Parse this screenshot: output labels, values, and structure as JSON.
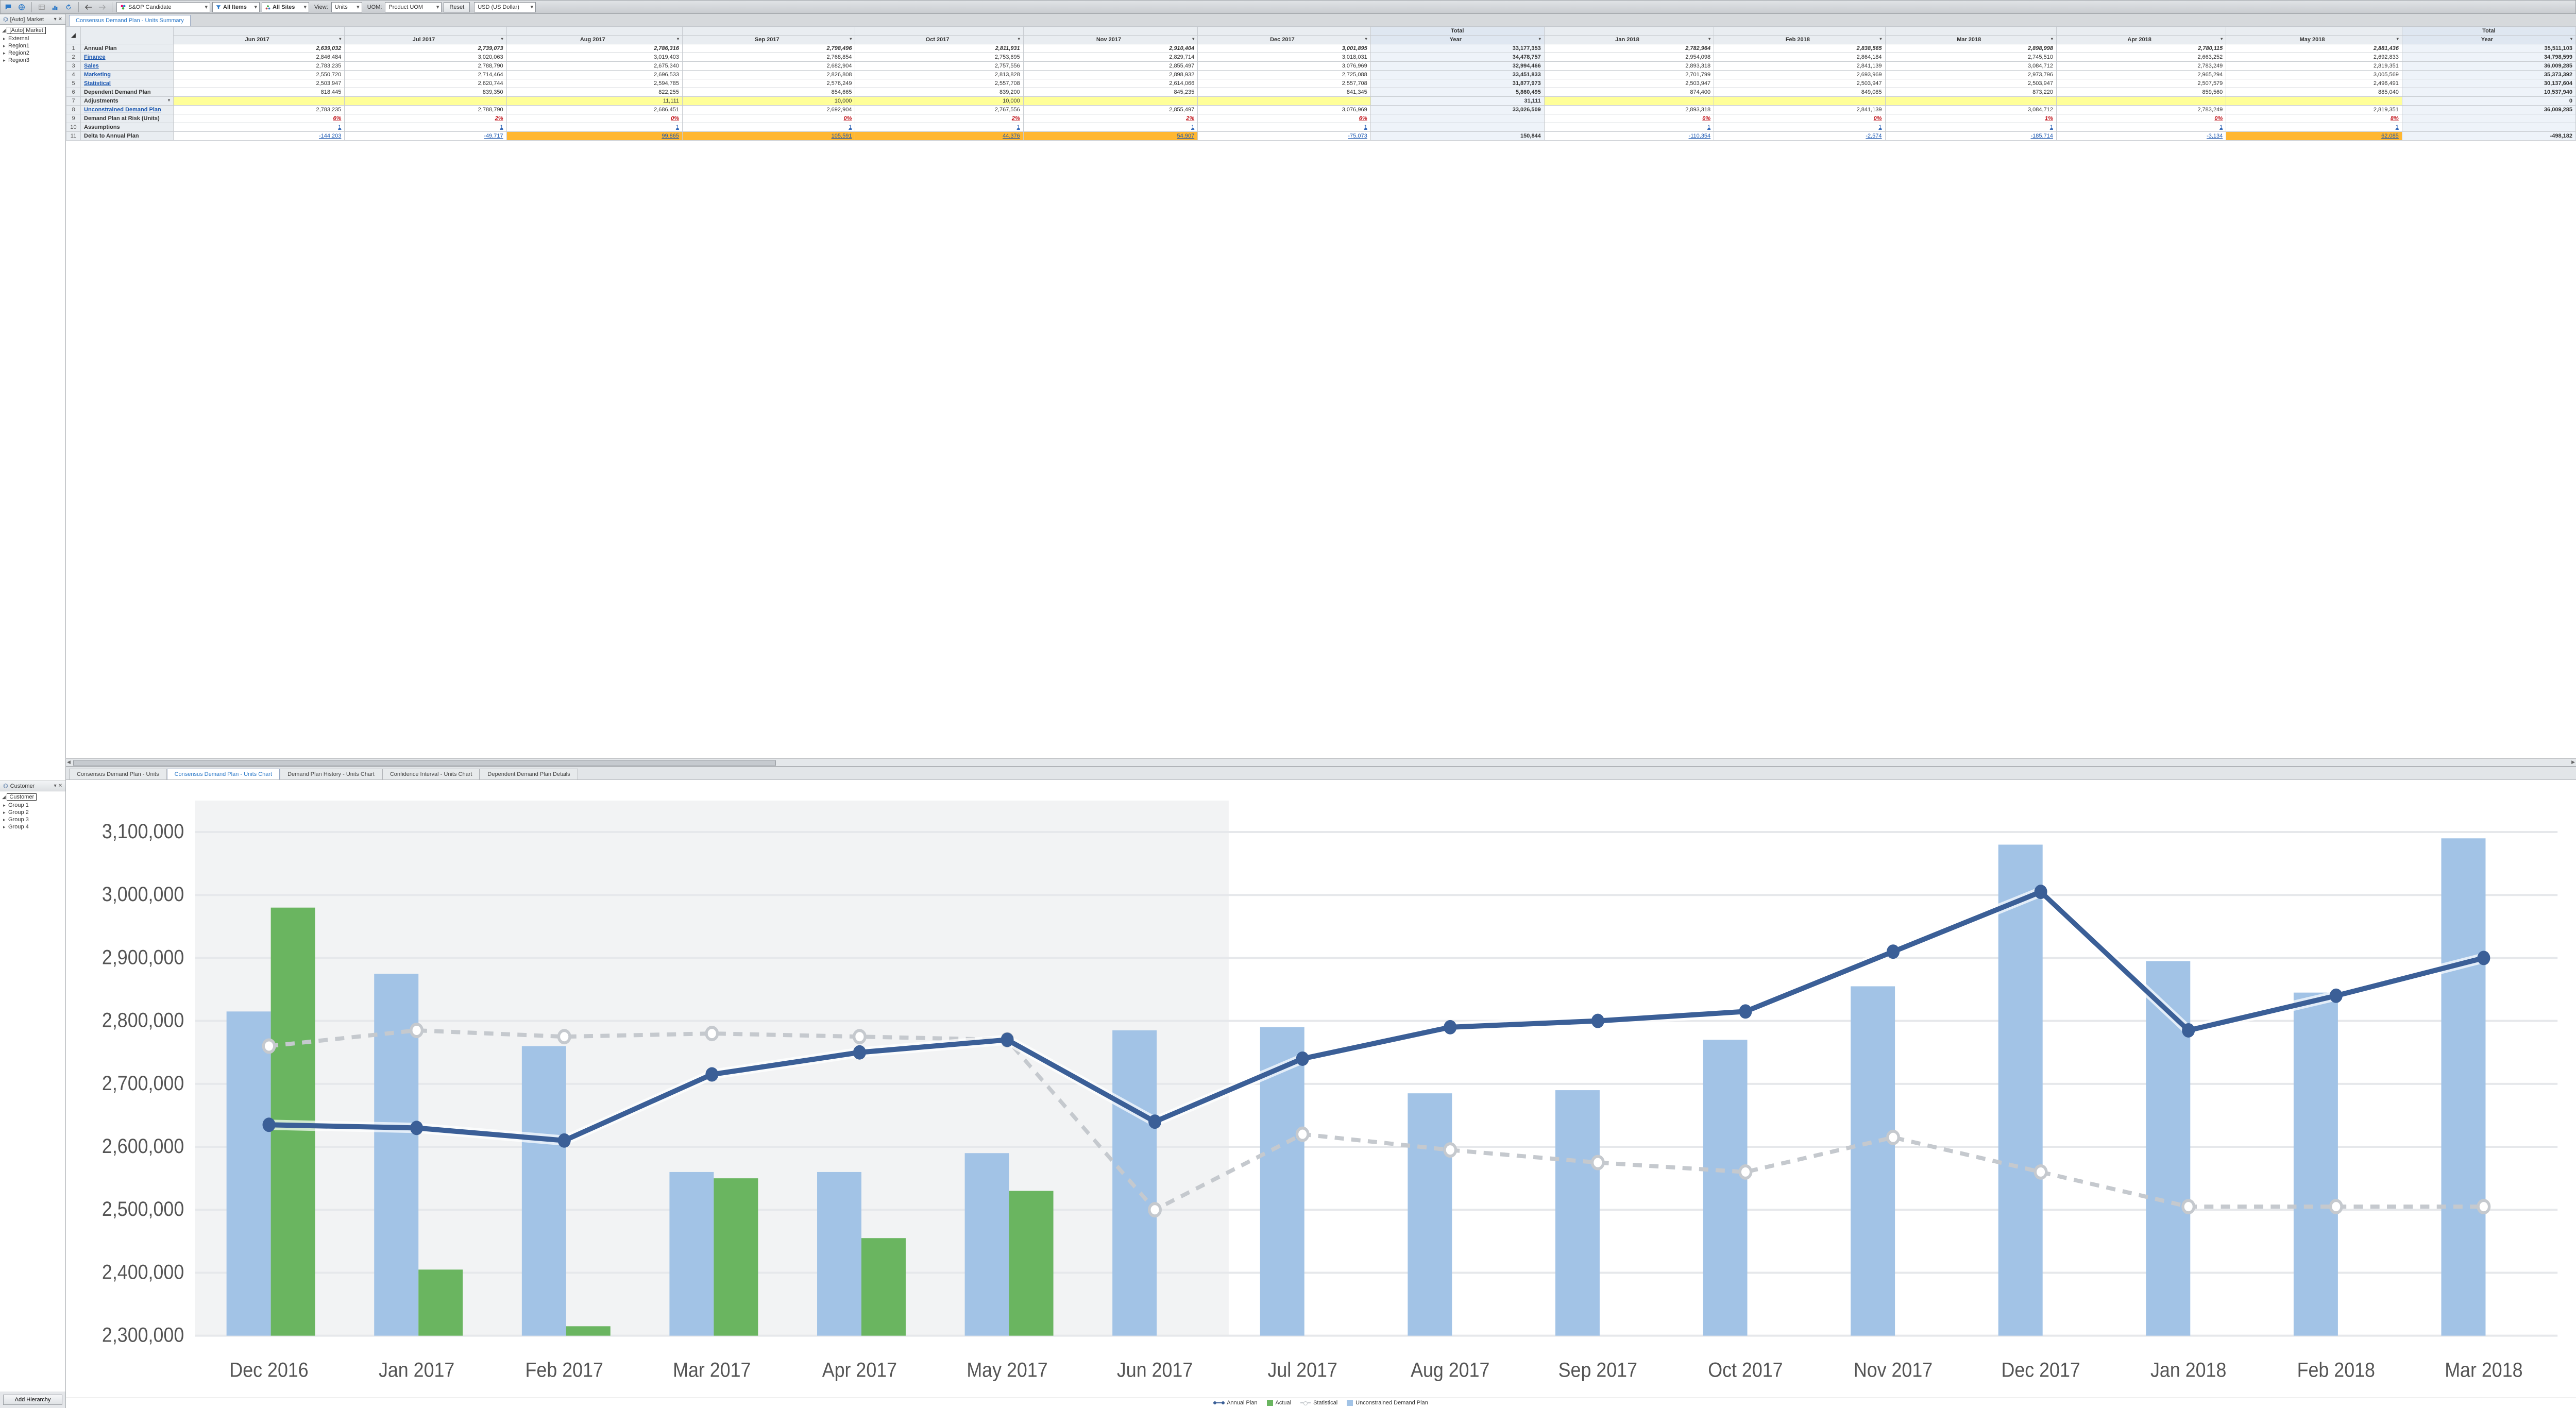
{
  "toolbar": {
    "scenario": "S&OP Candidate",
    "filter1": "All Items",
    "filter2": "All Sites",
    "view_lbl": "View:",
    "view_val": "Units",
    "uom_lbl": "UOM:",
    "uom_val": "Product UOM",
    "reset": "Reset",
    "currency": "USD (US Dollar)"
  },
  "left_top": {
    "hdr": "[Auto] Market",
    "root": "[Auto] Market",
    "nodes": [
      "External",
      "Region1",
      "Region2",
      "Region3"
    ]
  },
  "left_bottom": {
    "hdr": "Customer",
    "root": "Customer",
    "nodes": [
      "Group 1",
      "Group 2",
      "Group 3",
      "Group 4"
    ],
    "add": "Add Hierarchy"
  },
  "tabs_top": {
    "active": "Consensus Demand Plan - Units Summary"
  },
  "grid": {
    "months": [
      "Jun 2017",
      "Jul 2017",
      "Aug 2017",
      "Sep 2017",
      "Oct 2017",
      "Nov 2017",
      "Dec 2017"
    ],
    "total1_hdr_top": "Total",
    "total1_hdr": "Year",
    "months2": [
      "Jan 2018",
      "Feb 2018",
      "Mar 2018",
      "Apr 2018",
      "May 2018"
    ],
    "total2_hdr_top": "Total",
    "total2_hdr": "Year",
    "rows": [
      {
        "n": "1",
        "name": "Annual Plan",
        "style": "italic",
        "vals": [
          "2,639,032",
          "2,739,073",
          "2,786,316",
          "2,798,496",
          "2,811,931",
          "2,910,404",
          "3,001,895"
        ],
        "t1": "33,177,353",
        "vals2": [
          "2,782,964",
          "2,838,565",
          "2,898,998",
          "2,780,115",
          "2,881,436"
        ],
        "t2": "35,511,103"
      },
      {
        "n": "2",
        "name": "Finance",
        "link": true,
        "vals": [
          "2,846,484",
          "3,020,063",
          "3,019,403",
          "2,768,854",
          "2,753,695",
          "2,829,714",
          "3,018,031"
        ],
        "t1": "34,478,757",
        "vals2": [
          "2,954,098",
          "2,864,184",
          "2,745,510",
          "2,663,252",
          "2,692,833"
        ],
        "t2": "34,798,599"
      },
      {
        "n": "3",
        "name": "Sales",
        "link": true,
        "vals": [
          "2,783,235",
          "2,788,790",
          "2,675,340",
          "2,682,904",
          "2,757,556",
          "2,855,497",
          "3,076,969"
        ],
        "t1": "32,994,466",
        "vals2": [
          "2,893,318",
          "2,841,139",
          "3,084,712",
          "2,783,249",
          "2,819,351"
        ],
        "t2": "36,009,285"
      },
      {
        "n": "4",
        "name": "Marketing",
        "link": true,
        "vals": [
          "2,550,720",
          "2,714,464",
          "2,696,533",
          "2,826,808",
          "2,813,828",
          "2,898,932",
          "2,725,088"
        ],
        "t1": "33,451,833",
        "vals2": [
          "2,701,799",
          "2,693,969",
          "2,973,796",
          "2,965,294",
          "3,005,569"
        ],
        "t2": "35,373,392"
      },
      {
        "n": "5",
        "name": "Statistical",
        "link": true,
        "vals": [
          "2,503,947",
          "2,620,744",
          "2,594,785",
          "2,576,249",
          "2,557,708",
          "2,614,066",
          "2,557,708"
        ],
        "t1": "31,877,973",
        "vals2": [
          "2,503,947",
          "2,503,947",
          "2,503,947",
          "2,507,579",
          "2,496,491"
        ],
        "t2": "30,137,604"
      },
      {
        "n": "6",
        "name": "Dependent Demand Plan",
        "vals": [
          "818,445",
          "839,350",
          "822,255",
          "854,665",
          "839,200",
          "845,235",
          "841,345"
        ],
        "t1": "5,860,495",
        "vals2": [
          "874,400",
          "849,085",
          "873,220",
          "859,560",
          "885,040"
        ],
        "t2": "10,537,940"
      },
      {
        "n": "7",
        "name": "Adjustments",
        "dd": true,
        "vals": [
          "",
          "",
          "11,111",
          "10,000",
          "10,000",
          "",
          ""
        ],
        "t1": "31,111",
        "vals2": [
          "",
          "",
          "",
          "",
          ""
        ],
        "t2": "0",
        "yellow": [
          0,
          1,
          2,
          3,
          4,
          5,
          6
        ],
        "yellow2": [
          0,
          1,
          2,
          3,
          4
        ]
      },
      {
        "n": "8",
        "name": "Unconstrained Demand Plan",
        "link": true,
        "vals": [
          "2,783,235",
          "2,788,790",
          "2,686,451",
          "2,692,904",
          "2,767,556",
          "2,855,497",
          "3,076,969"
        ],
        "t1": "33,026,509",
        "vals2": [
          "2,893,318",
          "2,841,139",
          "3,084,712",
          "2,783,249",
          "2,819,351"
        ],
        "t2": "36,009,285"
      },
      {
        "n": "9",
        "name": "Demand Plan at Risk (Units)",
        "red": true,
        "vals": [
          "6%",
          "2%",
          "0%",
          "0%",
          "2%",
          "2%",
          "6%"
        ],
        "t1": "",
        "vals2": [
          "0%",
          "0%",
          "1%",
          "0%",
          "8%"
        ],
        "t2": ""
      },
      {
        "n": "10",
        "name": "Assumptions",
        "bluelink": true,
        "vals": [
          "1",
          "1",
          "1",
          "1",
          "1",
          "1",
          "1"
        ],
        "t1": "",
        "vals2": [
          "1",
          "1",
          "1",
          "1",
          "1"
        ],
        "t2": ""
      },
      {
        "n": "11",
        "name": "Delta to Annual Plan",
        "vals": [
          "-144,203",
          "-49,717",
          "99,865",
          "105,591",
          "44,376",
          "54,907",
          "-75,073"
        ],
        "t1": "150,844",
        "vals2": [
          "-110,354",
          "-2,574",
          "-185,714",
          "-3,134",
          "62,085"
        ],
        "t2": "-498,182",
        "bluelink": true,
        "orangeIdx": [
          2,
          3,
          4,
          5
        ],
        "orangeIdx2": [
          4
        ]
      }
    ]
  },
  "chart_tabs": {
    "items": [
      "Consensus Demand Plan - Units",
      "Consensus Demand Plan - Units Chart",
      "Demand Plan History - Units Chart",
      "Confidence Interval - Units Chart",
      "Dependent Demand Plan Details"
    ],
    "active": 1
  },
  "chart": {
    "y_min": 2300000,
    "y_max": 3150000,
    "y_step": 100000,
    "y_ticks": [
      "2,300,000",
      "2,400,000",
      "2,500,000",
      "2,600,000",
      "2,700,000",
      "2,800,000",
      "2,900,000",
      "3,000,000",
      "3,100,000"
    ],
    "categories": [
      "Dec 2016",
      "Jan 2017",
      "Feb 2017",
      "Mar 2017",
      "Apr 2017",
      "May 2017",
      "Jun 2017",
      "Jul 2017",
      "Aug 2017",
      "Sep 2017",
      "Oct 2017",
      "Nov 2017",
      "Dec 2017",
      "Jan 2018",
      "Feb 2018",
      "Mar 2018"
    ],
    "colors": {
      "annual": "#3b5f97",
      "actual": "#6ab560",
      "statistical": "#c5c9ce",
      "unconstrained": "#a2c3e6",
      "grid": "#e6e8eb",
      "axis": "#bfc3c8",
      "text": "#555"
    },
    "bars_unconstrained": [
      2815000,
      2875000,
      2760000,
      2560000,
      2560000,
      2590000,
      2785000,
      2790000,
      2685000,
      2690000,
      2770000,
      2855000,
      3080000,
      2895000,
      2845000,
      3090000
    ],
    "bars_actual": [
      2980000,
      2405000,
      2315000,
      2550000,
      2455000,
      2530000,
      null,
      null,
      null,
      null,
      null,
      null,
      null,
      null,
      null,
      null
    ],
    "line_annual": [
      2635000,
      2630000,
      2610000,
      2715000,
      2750000,
      2770000,
      2640000,
      2740000,
      2790000,
      2800000,
      2815000,
      2910000,
      3005000,
      2785000,
      2840000,
      2900000
    ],
    "line_statistical": [
      2760000,
      2785000,
      2775000,
      2780000,
      2775000,
      2770000,
      2500000,
      2620000,
      2595000,
      2575000,
      2560000,
      2615000,
      2560000,
      2505000,
      2505000,
      2505000
    ],
    "shade_from": 0,
    "shade_to": 7,
    "legend": {
      "annual": "Annual Plan",
      "actual": "Actual",
      "statistical": "Statistical",
      "unconstrained": "Unconstrained Demand Plan"
    }
  }
}
